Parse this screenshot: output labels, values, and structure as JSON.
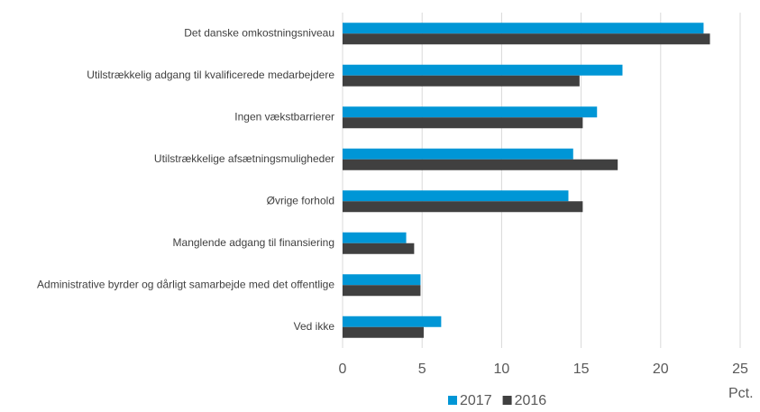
{
  "chart_data": {
    "type": "bar",
    "orientation": "horizontal",
    "categories": [
      "Det danske omkostningsniveau",
      "Utilstrækkelig adgang til kvalificerede medarbejdere",
      "Ingen vækstbarrierer",
      "Utilstrækkelige afsætningsmuligheder",
      "Øvrige forhold",
      "Manglende adgang til finansiering",
      "Administrative byrder og dårligt samarbejde med det offentlige",
      "Ved ikke"
    ],
    "series": [
      {
        "name": "2017",
        "color": "#0096d6",
        "values": [
          22.7,
          17.6,
          16.0,
          14.5,
          14.2,
          4.0,
          4.9,
          6.2
        ]
      },
      {
        "name": "2016",
        "color": "#404040",
        "values": [
          23.1,
          14.9,
          15.1,
          17.3,
          15.1,
          4.5,
          4.9,
          5.1
        ]
      }
    ],
    "xlabel": "Pct.",
    "xlim": [
      0,
      25
    ],
    "xticks": [
      0,
      5,
      10,
      15,
      20,
      25
    ],
    "grid": true,
    "legend": "bottom"
  }
}
